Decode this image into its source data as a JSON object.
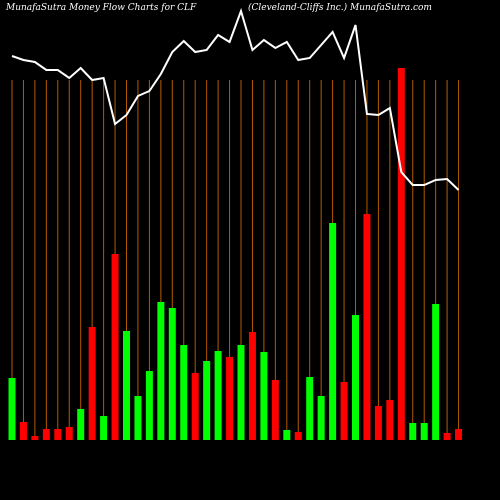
{
  "chart_data": {
    "type": "bar",
    "title": "MunafaSutra  Money Flow  Charts for CLF",
    "subtitle": "(Cleveland-Cliffs Inc.) MunafaSutra.com",
    "ylim": [
      0,
      440
    ],
    "series": [
      {
        "name": "Money flow",
        "type": "bar",
        "values": [
          62,
          18,
          4,
          11,
          11,
          13,
          31,
          113,
          24,
          186,
          109,
          44,
          69,
          138,
          132,
          95,
          67,
          79,
          89,
          83,
          95,
          108,
          88,
          60,
          10,
          8,
          63,
          44,
          217,
          58,
          125,
          226,
          34,
          40,
          372,
          17,
          17,
          136,
          7,
          11
        ],
        "colors": [
          "#00ff00",
          "#ff0000",
          "#ff0000",
          "#ff0000",
          "#ff0000",
          "#ff0000",
          "#00ff00",
          "#ff0000",
          "#00ff00",
          "#ff0000",
          "#00ff00",
          "#00ff00",
          "#00ff00",
          "#00ff00",
          "#00ff00",
          "#00ff00",
          "#ff0000",
          "#00ff00",
          "#00ff00",
          "#ff0000",
          "#00ff00",
          "#ff0000",
          "#00ff00",
          "#ff0000",
          "#00ff00",
          "#ff0000",
          "#00ff00",
          "#00ff00",
          "#00ff00",
          "#ff0000",
          "#00ff00",
          "#ff0000",
          "#ff0000",
          "#ff0000",
          "#ff0000",
          "#00ff00",
          "#00ff00",
          "#00ff00",
          "#ff0000",
          "#ff0000"
        ]
      },
      {
        "name": "Price",
        "type": "line",
        "color": "#ffffff",
        "values": [
          384,
          380,
          378,
          370,
          370,
          362,
          372,
          360,
          362,
          316,
          325,
          344,
          349,
          366,
          388,
          399,
          388,
          390,
          405,
          398,
          429,
          390,
          400,
          392,
          398,
          380,
          382,
          395,
          408,
          382,
          415,
          326,
          325,
          332,
          268,
          255,
          255,
          260,
          261,
          250
        ]
      }
    ],
    "grid_color": "#b35900"
  }
}
